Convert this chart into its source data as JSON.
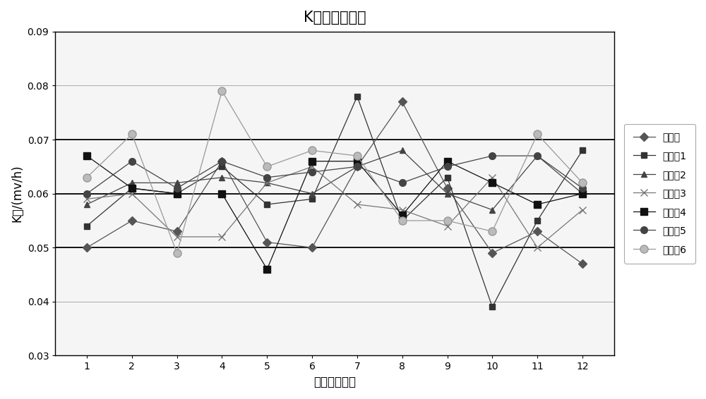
{
  "title": "K値分布示意图",
  "xlabel": "随机抽样样本",
  "ylabel": "K値/(mv/h)",
  "x": [
    1,
    2,
    3,
    4,
    5,
    6,
    7,
    8,
    9,
    10,
    11,
    12
  ],
  "ylim": [
    0.03,
    0.09
  ],
  "yticks": [
    0.03,
    0.04,
    0.05,
    0.06,
    0.07,
    0.08,
    0.09
  ],
  "series": [
    {
      "name": "对比例",
      "values": [
        0.05,
        0.055,
        0.053,
        0.066,
        0.051,
        0.05,
        0.065,
        0.077,
        0.061,
        0.049,
        0.053,
        0.047
      ],
      "color": "#555555",
      "marker": "D",
      "markersize": 6,
      "markerfacecolor": "#555555"
    },
    {
      "name": "实施例1",
      "values": [
        0.054,
        0.061,
        0.06,
        0.065,
        0.058,
        0.059,
        0.078,
        0.055,
        0.063,
        0.039,
        0.055,
        0.068
      ],
      "color": "#333333",
      "marker": "s",
      "markersize": 6,
      "markerfacecolor": "#333333"
    },
    {
      "name": "实施例2",
      "values": [
        0.058,
        0.062,
        0.062,
        0.063,
        0.062,
        0.06,
        0.065,
        0.068,
        0.06,
        0.057,
        0.067,
        0.06
      ],
      "color": "#444444",
      "marker": "^",
      "markersize": 6,
      "markerfacecolor": "#444444"
    },
    {
      "name": "实施例3",
      "values": [
        0.059,
        0.06,
        0.052,
        0.052,
        0.062,
        0.065,
        0.058,
        0.057,
        0.054,
        0.063,
        0.05,
        0.057
      ],
      "color": "#777777",
      "marker": "x",
      "markersize": 7,
      "markerfacecolor": "#777777"
    },
    {
      "name": "实施例4",
      "values": [
        0.067,
        0.061,
        0.06,
        0.06,
        0.046,
        0.066,
        0.066,
        0.056,
        0.066,
        0.062,
        0.058,
        0.06
      ],
      "color": "#111111",
      "marker": "s",
      "markersize": 7,
      "markerfacecolor": "#111111"
    },
    {
      "name": "实施例5",
      "values": [
        0.06,
        0.066,
        0.061,
        0.066,
        0.063,
        0.064,
        0.065,
        0.062,
        0.065,
        0.067,
        0.067,
        0.061
      ],
      "color": "#444444",
      "marker": "o",
      "markersize": 7,
      "markerfacecolor": "#444444"
    },
    {
      "name": "实施例6",
      "values": [
        0.063,
        0.071,
        0.049,
        0.079,
        0.065,
        0.068,
        0.067,
        0.055,
        0.055,
        0.053,
        0.071,
        0.062
      ],
      "color": "#999999",
      "marker": "o",
      "markersize": 8,
      "markerfacecolor": "#bbbbbb"
    }
  ],
  "thick_hlines": [
    0.05,
    0.06,
    0.07
  ],
  "thin_hlines": [
    0.03,
    0.04,
    0.08,
    0.09
  ],
  "background_color": "#ffffff",
  "plot_bg_color": "#f5f5f5",
  "title_fontsize": 15,
  "label_fontsize": 12,
  "tick_fontsize": 10,
  "legend_fontsize": 10
}
